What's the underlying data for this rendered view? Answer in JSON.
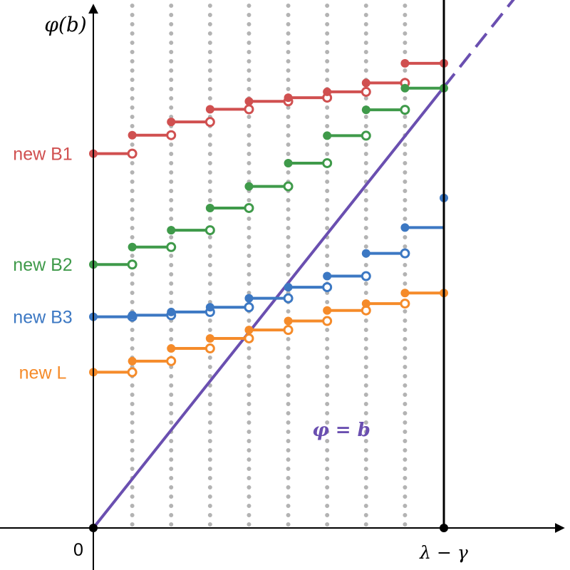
{
  "chart_data": {
    "type": "line",
    "ylabel": "φ(b)",
    "x_tick_labels": {
      "origin": "0",
      "end": "λ − γ"
    },
    "xlim": [
      0,
      1
    ],
    "ylim": [
      0,
      1
    ],
    "interval_boundaries": [
      0,
      0.111,
      0.222,
      0.333,
      0.444,
      0.556,
      0.667,
      0.778,
      0.889,
      1
    ],
    "diagonal": {
      "label": "φ = b",
      "color": "#6a4fb0",
      "end_x": 1.25,
      "solid_until_x": 1.0
    },
    "series": [
      {
        "name": "new B1",
        "color": "#d05050",
        "values": [
          0.709,
          0.744,
          0.769,
          0.793,
          0.808,
          0.815,
          0.826,
          0.843,
          0.88,
          0.88
        ]
      },
      {
        "name": "new B2",
        "color": "#3f9a4a",
        "values": [
          0.499,
          0.532,
          0.564,
          0.606,
          0.647,
          0.691,
          0.743,
          0.792,
          0.833,
          0.833
        ]
      },
      {
        "name": "new B3",
        "color": "#3c78c3",
        "values": [
          0.4,
          0.403,
          0.409,
          0.418,
          0.435,
          0.456,
          0.477,
          0.52,
          0.569,
          0.625
        ]
      },
      {
        "name": "new L",
        "color": "#f58b2a",
        "values": [
          0.295,
          0.316,
          0.34,
          0.359,
          0.375,
          0.392,
          0.412,
          0.425,
          0.445,
          0.445
        ]
      }
    ]
  }
}
